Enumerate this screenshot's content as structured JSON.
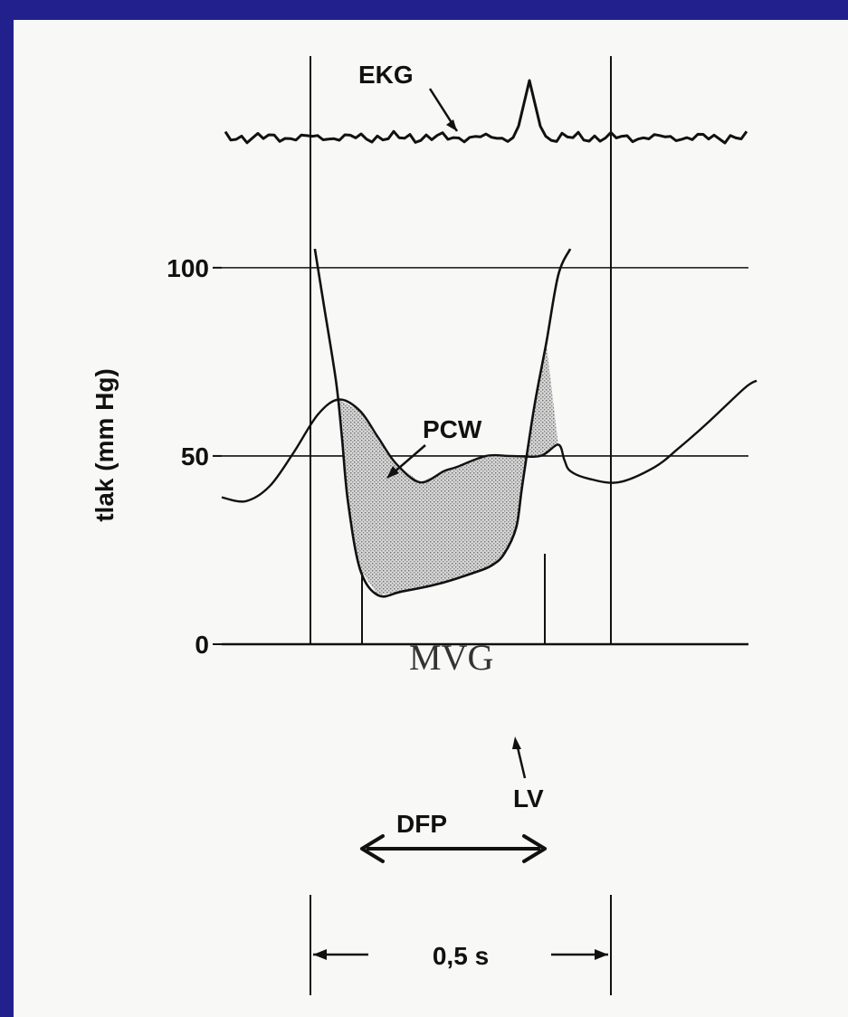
{
  "colors": {
    "background": "#22208c",
    "paper": "#f8f8f6",
    "ink": "#111111",
    "stipple": "#9a9a9a"
  },
  "chart_data": {
    "type": "line",
    "title": "",
    "xlabel": "",
    "ylabel": "tlak (mm Hg)",
    "ylim": [
      0,
      100
    ],
    "y_ticks": [
      "100",
      "50",
      "0"
    ],
    "y_tick_values": [
      100,
      50,
      0
    ],
    "grid": true,
    "time_scale_label": "0,5 s",
    "time_scale_value_s": 0.5,
    "annotations": [
      "EKG",
      "PCW",
      "MVG",
      "LV",
      "DFP"
    ],
    "series": [
      {
        "name": "PCW",
        "x": [
          0.0,
          0.04,
          0.08,
          0.12,
          0.16,
          0.195,
          0.23,
          0.26,
          0.29,
          0.33,
          0.37,
          0.39,
          0.44,
          0.48,
          0.53,
          0.56,
          0.57,
          0.58,
          0.61,
          0.66,
          0.72,
          0.76,
          0.81,
          0.87,
          0.89
        ],
        "values": [
          39,
          38,
          42,
          51,
          61,
          65,
          62,
          55,
          48,
          43,
          46,
          47,
          50,
          50,
          50,
          53,
          49,
          46,
          44,
          43,
          47,
          52,
          59,
          68,
          70
        ]
      },
      {
        "name": "LV",
        "x": [
          0.155,
          0.17,
          0.19,
          0.2,
          0.21,
          0.23,
          0.26,
          0.3,
          0.36,
          0.42,
          0.45,
          0.47,
          0.49,
          0.5,
          0.52,
          0.54,
          0.56,
          0.58
        ],
        "values": [
          105,
          90,
          70,
          55,
          38,
          20,
          13,
          14,
          16,
          19,
          21,
          24,
          31,
          42,
          63,
          80,
          98,
          105
        ]
      }
    ]
  }
}
